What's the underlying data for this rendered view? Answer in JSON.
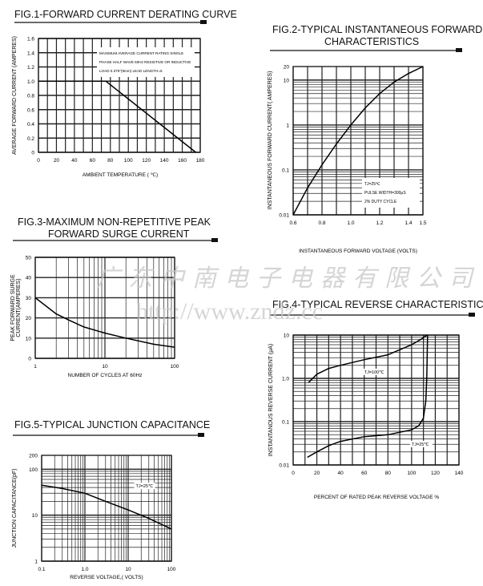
{
  "watermark": {
    "company": "广东中南电子电器有限公司",
    "url": "http://www.zndz.cc"
  },
  "chart_data": [
    {
      "type": "line",
      "title": [
        "FIG.1-FORWARD CURRENT DERATING CURVE"
      ],
      "xlabel": "AMBIENT  TEMPERATURE ( ℃)",
      "ylabel": "AVERAGE FORWARD CURRENT  (AMPERES)",
      "xscale": "linear",
      "yscale": "linear",
      "xlim": [
        0,
        180
      ],
      "ylim": [
        0,
        1.6
      ],
      "xticks": [
        0,
        20,
        40,
        60,
        80,
        100,
        120,
        140,
        160,
        180
      ],
      "xtick_labels": [
        "0",
        "20",
        "40",
        "60",
        "80",
        "100",
        "120",
        "140",
        "160",
        "180"
      ],
      "yticks": [
        0,
        0.2,
        0.4,
        0.6,
        0.8,
        1.0,
        1.2,
        1.4,
        1.6
      ],
      "ytick_labels": [
        "0",
        "0.2",
        "0.4",
        "0.6",
        "0.8",
        "1.0",
        "1.2",
        "1.4",
        "1.6"
      ],
      "annotations": [
        "MAXIMUM AVERAGE CURRENT RATING SINGLE",
        "PHASE HALF WAVE 60Hz RESISTIVE OR INDUCTIVE",
        "LOAD 0.375\"(9mm) LEAD LENGTH=5"
      ],
      "series": [
        {
          "name": "derating",
          "x": [
            0,
            75,
            175
          ],
          "y": [
            1.0,
            1.0,
            0
          ]
        }
      ]
    },
    {
      "type": "line",
      "title": [
        "FIG.2-TYPICAL INSTANTANEOUS FORWARD",
        "CHARACTERISTICS"
      ],
      "xlabel": "INSTANTANEOUS FORWARD VOLTAGE (VOLTS)",
      "ylabel": "INSTANTANEOUS FORWARD CURRENT( AMPERES)",
      "xscale": "linear",
      "yscale": "log",
      "xlim": [
        0.6,
        1.5
      ],
      "ylim": [
        0.01,
        20
      ],
      "xticks": [
        0.6,
        0.8,
        1.0,
        1.2,
        1.4,
        1.5
      ],
      "xtick_labels": [
        "0.6",
        "0.8",
        "1.0",
        "1.2",
        "1.4",
        "1.5"
      ],
      "yticks": [
        0.01,
        0.1,
        1,
        10,
        20
      ],
      "ytick_labels": [
        "0.01",
        "0.1",
        "1",
        "10",
        "20"
      ],
      "annotations": [
        "TJ=25℃",
        "PULSE WIDTH=300μS",
        "2% DUTY CYCLE"
      ],
      "series": [
        {
          "name": "forward",
          "x": [
            0.6,
            0.7,
            0.8,
            0.9,
            1.0,
            1.1,
            1.2,
            1.3,
            1.4,
            1.5
          ],
          "y": [
            0.01,
            0.04,
            0.13,
            0.38,
            1,
            2.4,
            5,
            9,
            14,
            20
          ]
        }
      ]
    },
    {
      "type": "line",
      "title": [
        "FIG.3-MAXIMUM NON-REPETITIVE PEAK",
        "FORWARD SURGE CURRENT"
      ],
      "xlabel": "NUMBER OF CYCLES AT 60Hz",
      "ylabel": [
        "PEAK FORWARD SURGE",
        "CURRENT(AMPERES)"
      ],
      "xscale": "log",
      "yscale": "linear",
      "xlim": [
        1,
        100
      ],
      "ylim": [
        0,
        50
      ],
      "xticks": [
        1,
        10,
        100
      ],
      "xtick_labels": [
        "1",
        "10",
        "100"
      ],
      "yticks": [
        0,
        10,
        20,
        30,
        40,
        50
      ],
      "ytick_labels": [
        "0",
        "10",
        "20",
        "30",
        "40",
        "50"
      ],
      "annotations": [],
      "series": [
        {
          "name": "surge",
          "x": [
            1,
            2,
            3,
            5,
            10,
            20,
            50,
            100
          ],
          "y": [
            30,
            22,
            19,
            15.5,
            12.5,
            10,
            7,
            5.5
          ]
        }
      ]
    },
    {
      "type": "line",
      "title": [
        "FIG.4-TYPICAL REVERSE CHARACTERISTICS"
      ],
      "xlabel": "PERCENT OF RATED PEAK REVERSE VOLTAGE %",
      "ylabel": "INSTANTANOUS REVERSE CURRENT  (μA)",
      "xscale": "linear",
      "yscale": "log",
      "xlim": [
        0,
        140
      ],
      "ylim": [
        0.01,
        10
      ],
      "xticks": [
        0,
        20,
        40,
        60,
        80,
        100,
        120,
        140
      ],
      "xtick_labels": [
        "0",
        "20",
        "40",
        "60",
        "80",
        "100",
        "120",
        "140"
      ],
      "yticks": [
        0.01,
        0.1,
        1,
        10
      ],
      "ytick_labels": [
        "0.01",
        "0.1",
        "1.0",
        "10"
      ],
      "annotations": [],
      "series": [
        {
          "name": "TJ=100℃",
          "x": [
            13,
            20,
            30,
            40,
            60,
            80,
            100,
            108,
            113
          ],
          "y": [
            0.8,
            1.25,
            1.7,
            2,
            2.7,
            3.5,
            6,
            8,
            10
          ]
        },
        {
          "name": "TJ=25℃",
          "x": [
            12,
            20,
            30,
            40,
            60,
            80,
            100,
            106,
            110,
            112,
            112.8,
            113.2,
            113.5
          ],
          "y": [
            0.015,
            0.02,
            0.028,
            0.035,
            0.045,
            0.05,
            0.065,
            0.08,
            0.12,
            0.3,
            1,
            4,
            10
          ]
        }
      ]
    },
    {
      "type": "line",
      "title": [
        "FIG.5-TYPICAL JUNCTION CAPACITANCE"
      ],
      "xlabel": "REVERSE VOLTAGE,( VOLTS)",
      "ylabel": "JUNCTION CAPACITANCE(pF)",
      "xscale": "log",
      "yscale": "log",
      "xlim": [
        0.1,
        100
      ],
      "ylim": [
        1,
        200
      ],
      "xticks": [
        0.1,
        1,
        10,
        100
      ],
      "xtick_labels": [
        "0.1",
        "1.0",
        "10",
        "100"
      ],
      "yticks": [
        1,
        10,
        100,
        200
      ],
      "ytick_labels": [
        "1",
        "10",
        "100",
        "200"
      ],
      "annotations": [],
      "series": [
        {
          "name": "TJ=25℃",
          "x": [
            0.1,
            0.3,
            1,
            3,
            10,
            30,
            100
          ],
          "y": [
            45,
            38,
            30,
            20,
            13,
            8.5,
            5
          ]
        }
      ]
    }
  ]
}
